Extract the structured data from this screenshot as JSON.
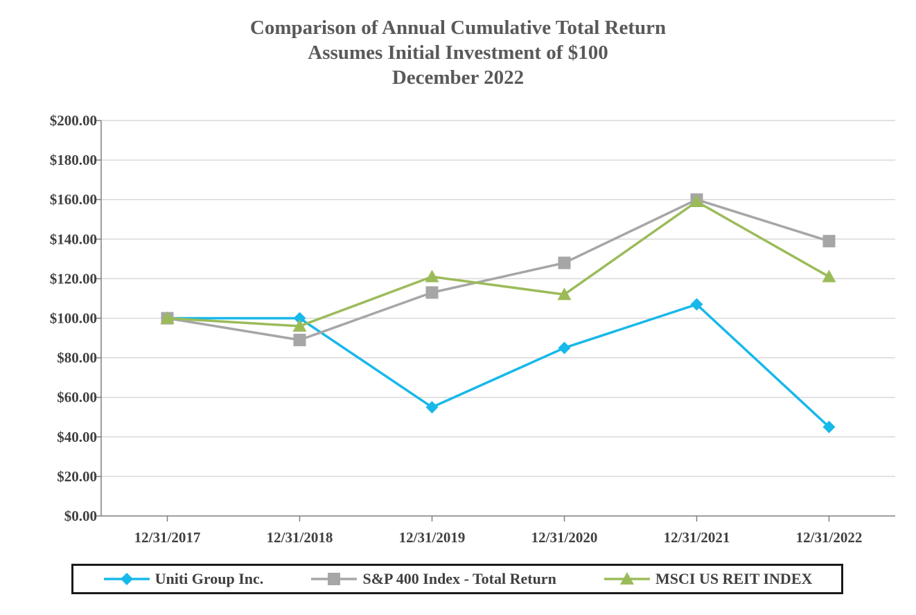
{
  "chart_data": {
    "type": "line",
    "title": [
      "Comparison of Annual Cumulative Total Return",
      "Assumes Initial Investment of $100",
      "December 2022"
    ],
    "categories": [
      "12/31/2017",
      "12/31/2018",
      "12/31/2019",
      "12/31/2020",
      "12/31/2021",
      "12/31/2022"
    ],
    "y_tick_labels": [
      "$0.00",
      "$20.00",
      "$40.00",
      "$60.00",
      "$80.00",
      "$100.00",
      "$120.00",
      "$140.00",
      "$160.00",
      "$180.00",
      "$200.00"
    ],
    "y_ticks": [
      0,
      20,
      40,
      60,
      80,
      100,
      120,
      140,
      160,
      180,
      200
    ],
    "ylim": [
      0,
      200
    ],
    "grid": true,
    "legend_position": "bottom",
    "series": [
      {
        "name": "Uniti Group Inc.",
        "values": [
          100,
          100,
          55,
          85,
          107,
          45
        ],
        "color": "#17b8ea",
        "marker": "diamond"
      },
      {
        "name": "S&P 400 Index - Total Return",
        "values": [
          100,
          89,
          113,
          128,
          160,
          139
        ],
        "color": "#a6a6a6",
        "marker": "square"
      },
      {
        "name": "MSCI US REIT INDEX",
        "values": [
          100,
          96,
          121,
          112,
          159,
          121
        ],
        "color": "#9bbb59",
        "marker": "triangle"
      }
    ]
  }
}
